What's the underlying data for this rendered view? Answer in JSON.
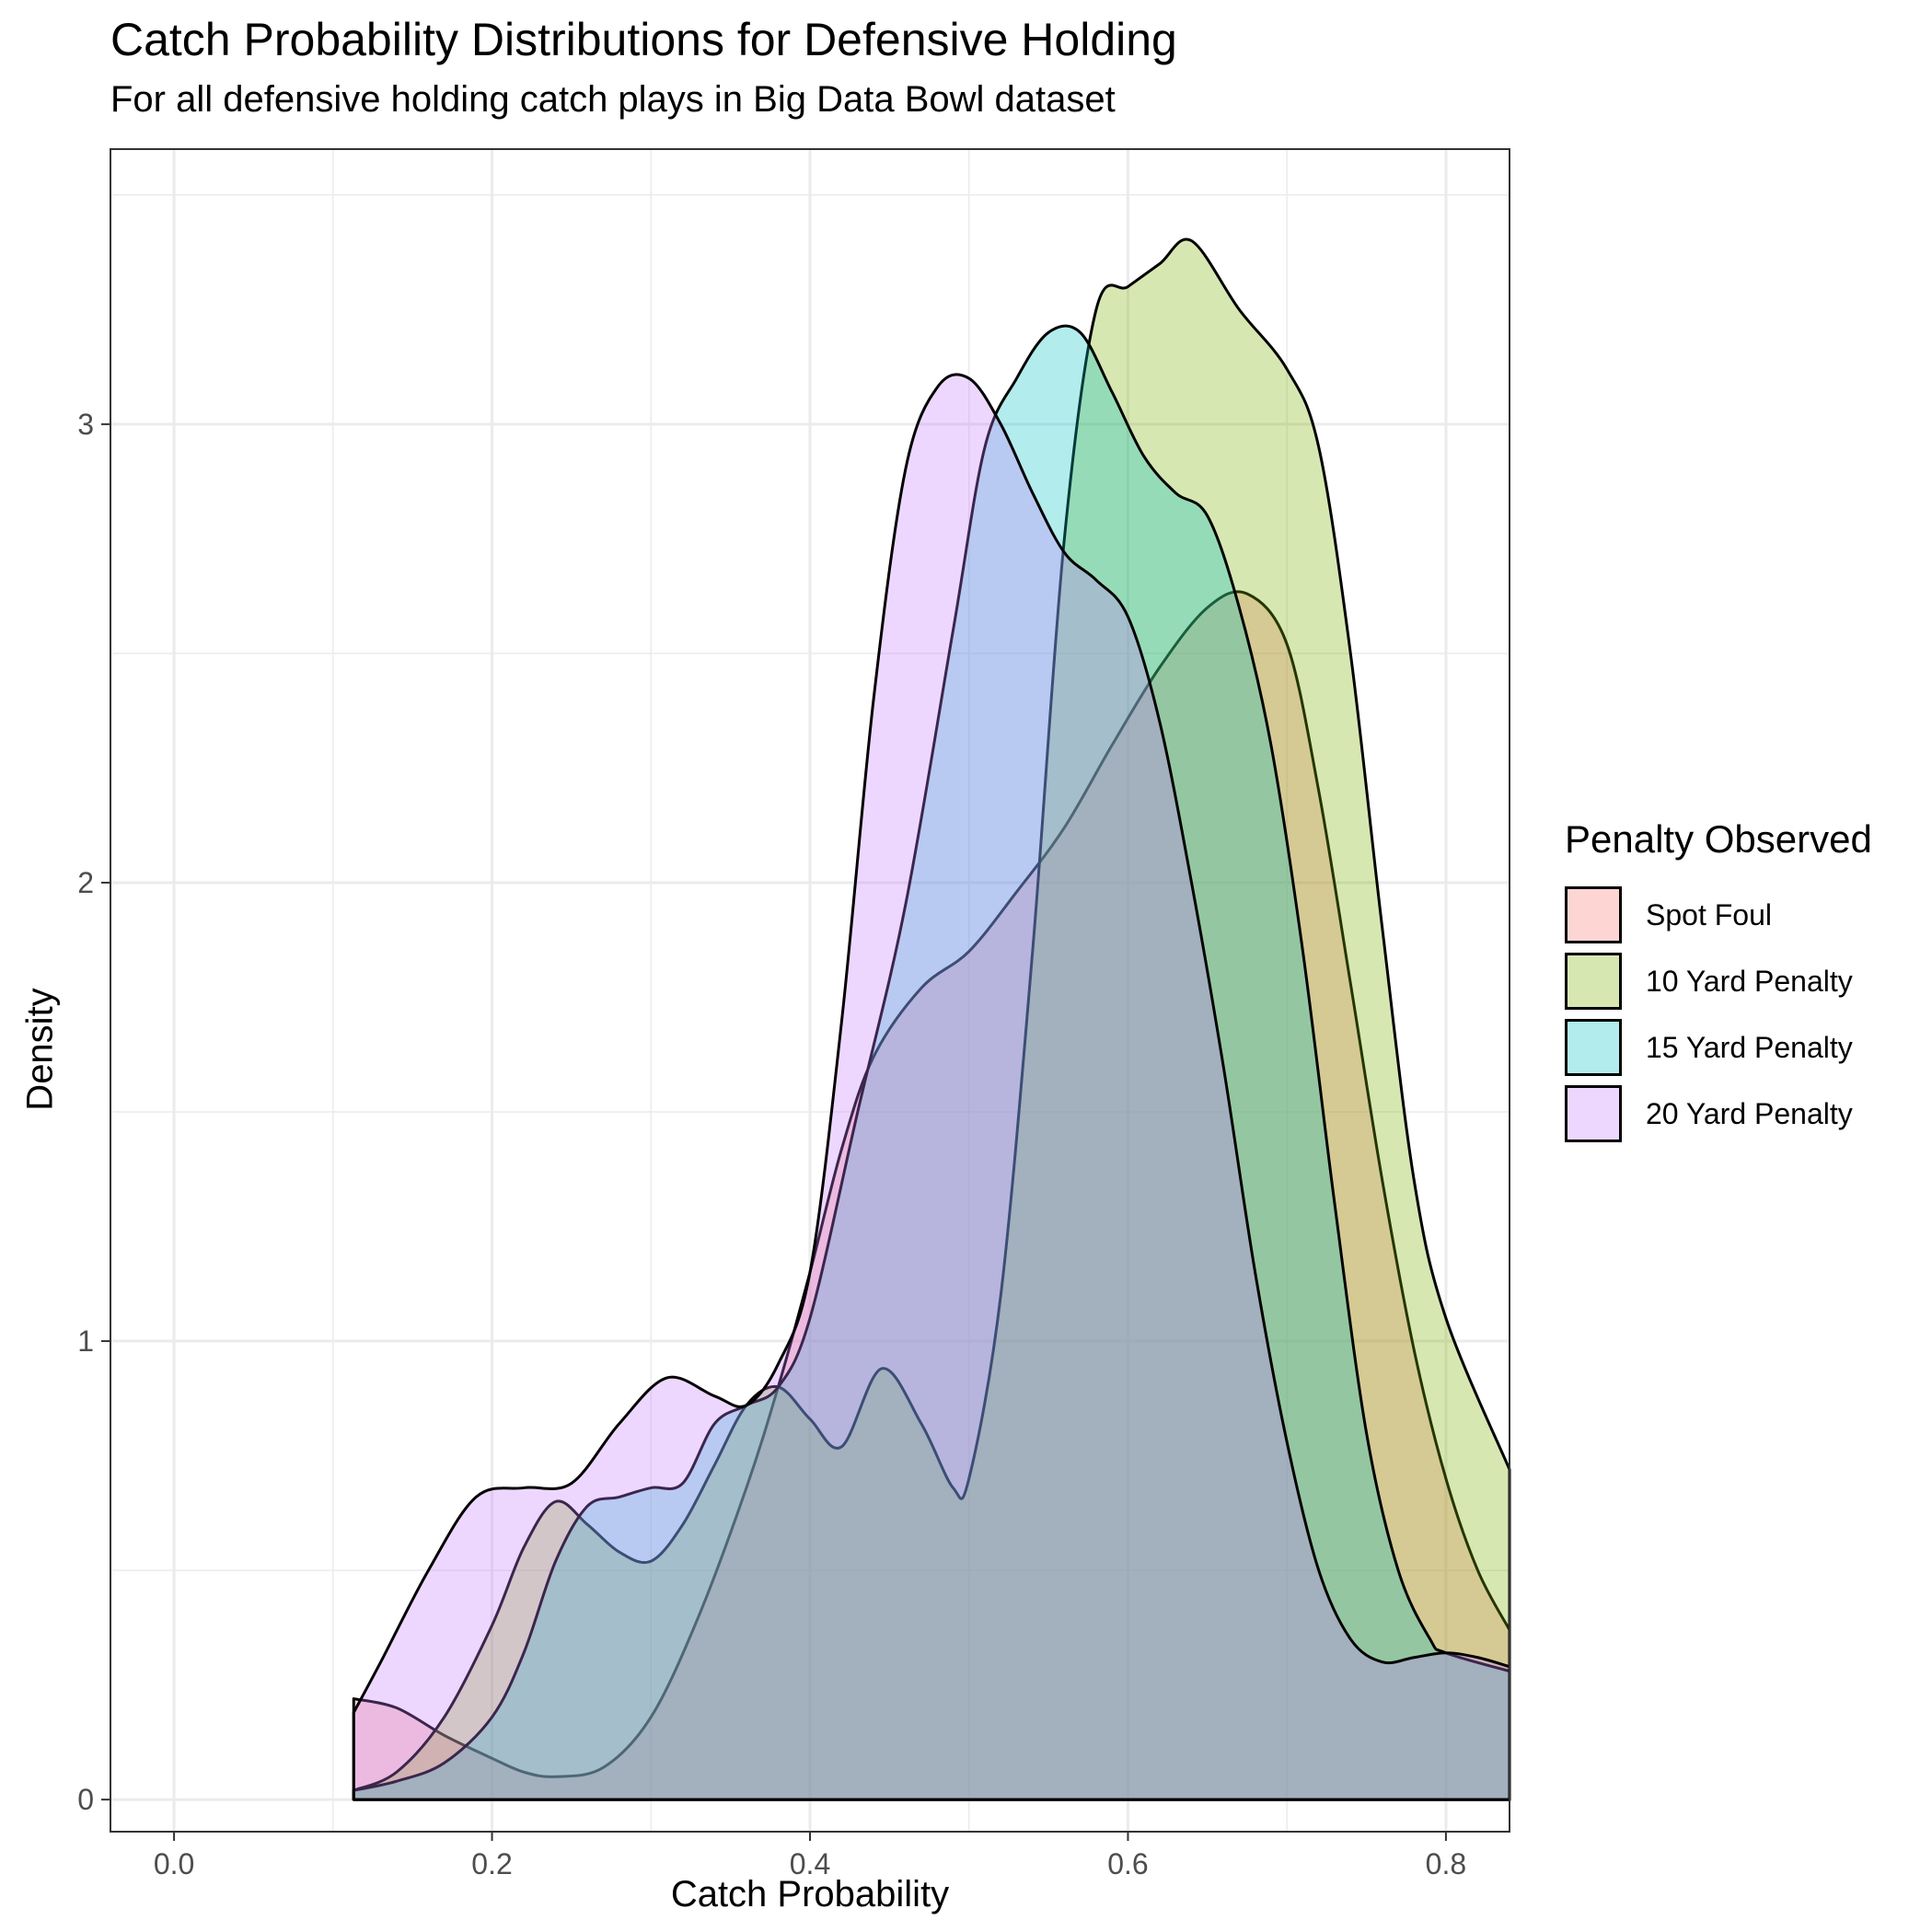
{
  "chart_data": {
    "type": "area",
    "title": "Catch Probability Distributions for Defensive Holding",
    "subtitle": "For all defensive holding catch plays in Big Data Bowl dataset",
    "xlabel": "Catch Probability",
    "ylabel": "Density",
    "xlim": [
      -0.04,
      0.84
    ],
    "ylim": [
      -0.07,
      3.6
    ],
    "xticks": [
      0.0,
      0.2,
      0.4,
      0.6,
      0.8
    ],
    "xtick_labels": [
      "0.0",
      "0.2",
      "0.4",
      "0.6",
      "0.8"
    ],
    "yticks": [
      0,
      1,
      2,
      3
    ],
    "ytick_labels": [
      "0",
      "1",
      "2",
      "3"
    ],
    "grid": true,
    "legend": {
      "title": "Penalty Observed",
      "position": "right"
    },
    "series": [
      {
        "name": "Spot Foul",
        "color": "#F8766D",
        "points": [
          [
            0.113,
            0.22
          ],
          [
            0.14,
            0.2
          ],
          [
            0.17,
            0.14
          ],
          [
            0.2,
            0.09
          ],
          [
            0.22,
            0.06
          ],
          [
            0.24,
            0.05
          ],
          [
            0.27,
            0.07
          ],
          [
            0.3,
            0.18
          ],
          [
            0.33,
            0.4
          ],
          [
            0.36,
            0.68
          ],
          [
            0.38,
            0.9
          ],
          [
            0.4,
            1.15
          ],
          [
            0.42,
            1.42
          ],
          [
            0.44,
            1.62
          ],
          [
            0.47,
            1.77
          ],
          [
            0.5,
            1.85
          ],
          [
            0.53,
            1.98
          ],
          [
            0.56,
            2.12
          ],
          [
            0.59,
            2.3
          ],
          [
            0.62,
            2.47
          ],
          [
            0.65,
            2.6
          ],
          [
            0.675,
            2.63
          ],
          [
            0.7,
            2.52
          ],
          [
            0.72,
            2.2
          ],
          [
            0.74,
            1.78
          ],
          [
            0.76,
            1.35
          ],
          [
            0.78,
            0.98
          ],
          [
            0.8,
            0.7
          ],
          [
            0.82,
            0.5
          ],
          [
            0.84,
            0.37
          ]
        ]
      },
      {
        "name": "10 Yard Penalty",
        "color": "#7CAE00",
        "points": [
          [
            0.113,
            0.02
          ],
          [
            0.14,
            0.06
          ],
          [
            0.17,
            0.18
          ],
          [
            0.2,
            0.38
          ],
          [
            0.22,
            0.55
          ],
          [
            0.24,
            0.65
          ],
          [
            0.26,
            0.6
          ],
          [
            0.28,
            0.54
          ],
          [
            0.3,
            0.52
          ],
          [
            0.32,
            0.6
          ],
          [
            0.34,
            0.73
          ],
          [
            0.36,
            0.86
          ],
          [
            0.38,
            0.9
          ],
          [
            0.4,
            0.83
          ],
          [
            0.42,
            0.77
          ],
          [
            0.445,
            0.94
          ],
          [
            0.47,
            0.82
          ],
          [
            0.49,
            0.68
          ],
          [
            0.5,
            0.7
          ],
          [
            0.52,
            1.1
          ],
          [
            0.54,
            1.85
          ],
          [
            0.56,
            2.75
          ],
          [
            0.58,
            3.25
          ],
          [
            0.6,
            3.3
          ],
          [
            0.62,
            3.35
          ],
          [
            0.64,
            3.4
          ],
          [
            0.67,
            3.25
          ],
          [
            0.7,
            3.12
          ],
          [
            0.72,
            2.95
          ],
          [
            0.74,
            2.5
          ],
          [
            0.76,
            1.9
          ],
          [
            0.78,
            1.35
          ],
          [
            0.8,
            1.05
          ],
          [
            0.84,
            0.72
          ]
        ]
      },
      {
        "name": "15 Yard Penalty",
        "color": "#00BFC4",
        "points": [
          [
            0.113,
            0.02
          ],
          [
            0.14,
            0.04
          ],
          [
            0.17,
            0.08
          ],
          [
            0.2,
            0.18
          ],
          [
            0.22,
            0.32
          ],
          [
            0.24,
            0.52
          ],
          [
            0.26,
            0.64
          ],
          [
            0.28,
            0.66
          ],
          [
            0.3,
            0.68
          ],
          [
            0.32,
            0.69
          ],
          [
            0.34,
            0.82
          ],
          [
            0.36,
            0.86
          ],
          [
            0.38,
            0.9
          ],
          [
            0.4,
            1.05
          ],
          [
            0.43,
            1.5
          ],
          [
            0.46,
            1.95
          ],
          [
            0.49,
            2.55
          ],
          [
            0.51,
            2.95
          ],
          [
            0.53,
            3.1
          ],
          [
            0.55,
            3.2
          ],
          [
            0.57,
            3.2
          ],
          [
            0.59,
            3.07
          ],
          [
            0.61,
            2.93
          ],
          [
            0.63,
            2.85
          ],
          [
            0.65,
            2.8
          ],
          [
            0.67,
            2.6
          ],
          [
            0.69,
            2.3
          ],
          [
            0.71,
            1.85
          ],
          [
            0.73,
            1.3
          ],
          [
            0.75,
            0.8
          ],
          [
            0.77,
            0.5
          ],
          [
            0.79,
            0.35
          ],
          [
            0.8,
            0.32
          ],
          [
            0.84,
            0.28
          ]
        ]
      },
      {
        "name": "20 Yard Penalty",
        "color": "#C77CFF",
        "points": [
          [
            0.113,
            0.19
          ],
          [
            0.13,
            0.3
          ],
          [
            0.16,
            0.5
          ],
          [
            0.19,
            0.66
          ],
          [
            0.22,
            0.68
          ],
          [
            0.25,
            0.69
          ],
          [
            0.28,
            0.82
          ],
          [
            0.31,
            0.92
          ],
          [
            0.34,
            0.88
          ],
          [
            0.36,
            0.86
          ],
          [
            0.38,
            0.95
          ],
          [
            0.4,
            1.15
          ],
          [
            0.42,
            1.7
          ],
          [
            0.44,
            2.4
          ],
          [
            0.46,
            2.9
          ],
          [
            0.48,
            3.08
          ],
          [
            0.5,
            3.1
          ],
          [
            0.52,
            3.0
          ],
          [
            0.54,
            2.85
          ],
          [
            0.56,
            2.72
          ],
          [
            0.58,
            2.66
          ],
          [
            0.6,
            2.58
          ],
          [
            0.62,
            2.35
          ],
          [
            0.64,
            2.0
          ],
          [
            0.66,
            1.6
          ],
          [
            0.68,
            1.15
          ],
          [
            0.7,
            0.78
          ],
          [
            0.72,
            0.5
          ],
          [
            0.74,
            0.35
          ],
          [
            0.76,
            0.3
          ],
          [
            0.78,
            0.31
          ],
          [
            0.8,
            0.32
          ],
          [
            0.82,
            0.31
          ],
          [
            0.84,
            0.29
          ]
        ]
      }
    ]
  }
}
